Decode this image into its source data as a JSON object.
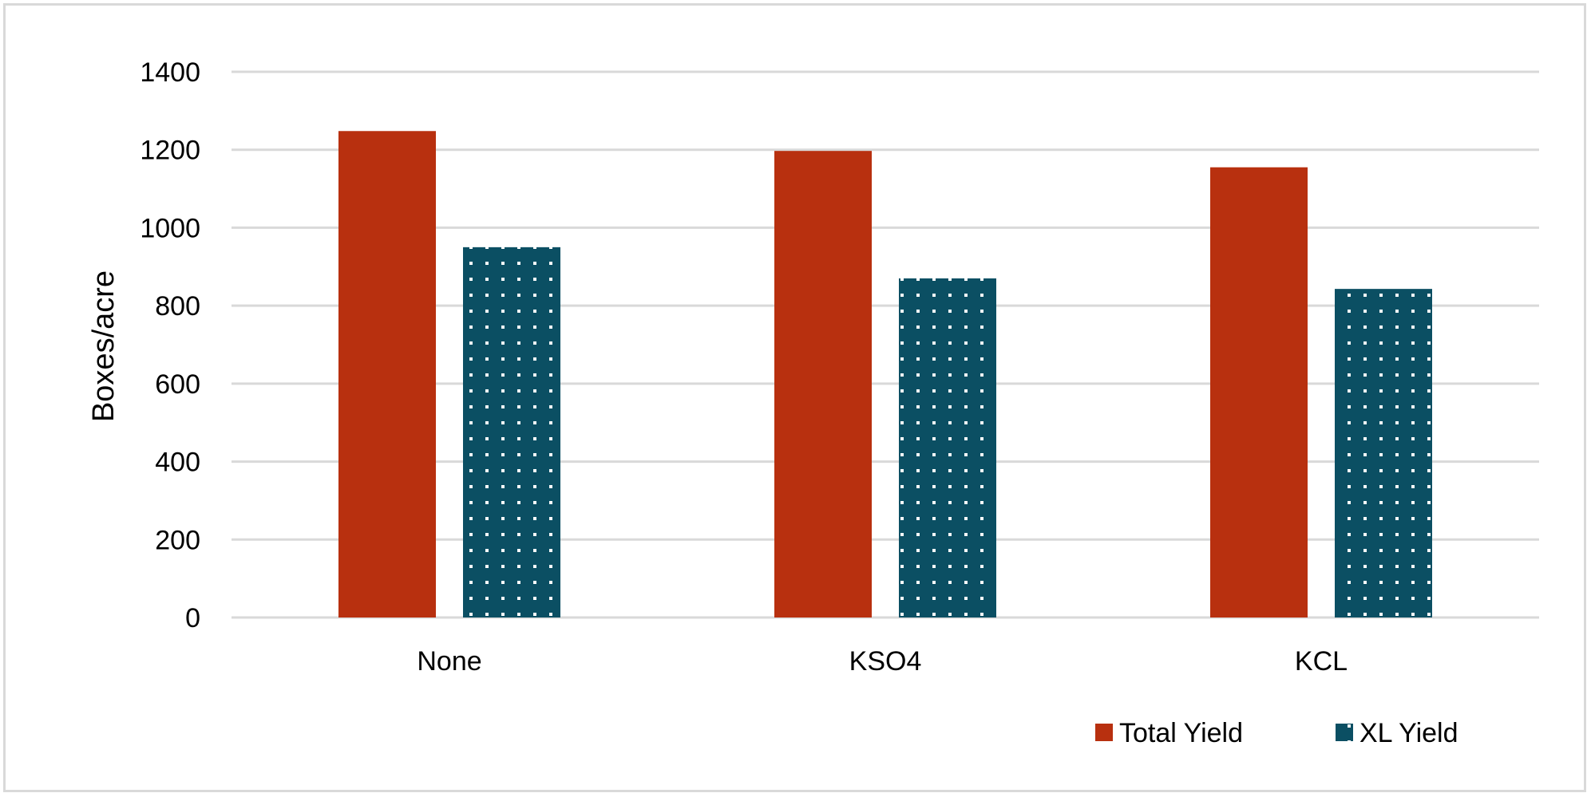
{
  "chart_data": {
    "type": "bar",
    "title": "",
    "xlabel": "",
    "ylabel": "Boxes/acre",
    "categories": [
      "None",
      "KSO4",
      "KCL"
    ],
    "series": [
      {
        "name": "Total Yield",
        "values": [
          1248,
          1197,
          1155
        ],
        "color": "#b8300f",
        "pattern": "solid"
      },
      {
        "name": "XL Yield",
        "values": [
          950,
          870,
          843
        ],
        "color": "#0b4f63",
        "pattern": "white-dots"
      }
    ],
    "ylim": [
      0,
      1400
    ],
    "yticks": [
      0,
      200,
      400,
      600,
      800,
      1000,
      1200,
      1400
    ],
    "grid": true,
    "legend_position": "bottom-right"
  }
}
